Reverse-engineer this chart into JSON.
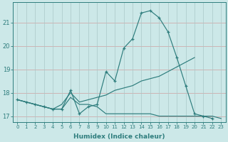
{
  "xlabel": "Humidex (Indice chaleur)",
  "x_values": [
    0,
    1,
    2,
    3,
    4,
    5,
    6,
    7,
    8,
    9,
    10,
    11,
    12,
    13,
    14,
    15,
    16,
    17,
    18,
    19,
    20,
    21,
    22,
    23
  ],
  "line_main_y": [
    17.7,
    17.6,
    17.5,
    17.4,
    17.3,
    17.3,
    18.1,
    17.1,
    17.4,
    17.5,
    18.9,
    18.5,
    19.9,
    20.3,
    21.4,
    21.5,
    21.2,
    20.6,
    19.5,
    18.3,
    17.1,
    17.0,
    16.9,
    null
  ],
  "line_diag_y": [
    17.7,
    17.6,
    17.5,
    17.4,
    17.3,
    17.5,
    18.0,
    17.6,
    17.7,
    17.8,
    17.9,
    18.1,
    18.2,
    18.3,
    18.5,
    18.6,
    18.7,
    18.9,
    19.1,
    19.3,
    19.5,
    null,
    null,
    null
  ],
  "line_flat_y": [
    17.7,
    17.6,
    17.5,
    17.4,
    17.3,
    17.3,
    17.8,
    17.5,
    17.5,
    17.4,
    17.1,
    17.1,
    17.1,
    17.1,
    17.1,
    17.1,
    17.0,
    17.0,
    17.0,
    17.0,
    17.0,
    17.0,
    17.0,
    16.9
  ],
  "line_color": "#2e7d7d",
  "bg_color": "#cce8e8",
  "grid_color_major": "#aac8c8",
  "grid_color_minor": "#bbdada",
  "ylim_min": 16.75,
  "ylim_max": 21.85,
  "yticks": [
    17,
    18,
    19,
    20,
    21
  ],
  "xticks": [
    0,
    1,
    2,
    3,
    4,
    5,
    6,
    7,
    8,
    9,
    10,
    11,
    12,
    13,
    14,
    15,
    16,
    17,
    18,
    19,
    20,
    21,
    22,
    23
  ]
}
